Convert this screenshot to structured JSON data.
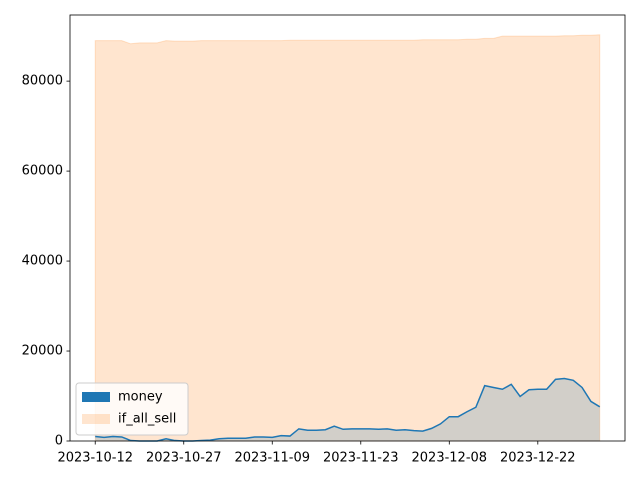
{
  "chart_data": {
    "type": "area",
    "categories": [
      "2023-10-12",
      null,
      null,
      null,
      null,
      null,
      null,
      null,
      null,
      null,
      "2023-10-27",
      null,
      null,
      null,
      null,
      null,
      null,
      null,
      null,
      null,
      "2023-11-09",
      null,
      null,
      null,
      null,
      null,
      null,
      null,
      null,
      null,
      "2023-11-23",
      null,
      null,
      null,
      null,
      null,
      null,
      null,
      null,
      null,
      "2023-12-08",
      null,
      null,
      null,
      null,
      null,
      null,
      null,
      null,
      null,
      "2023-12-22",
      null,
      null,
      null,
      null,
      null,
      null,
      null
    ],
    "series": [
      {
        "name": "money",
        "color": "#1f77b4",
        "line": true,
        "values": [
          1000,
          800,
          1000,
          900,
          100,
          0,
          0,
          0,
          500,
          100,
          0,
          0,
          100,
          200,
          500,
          600,
          600,
          600,
          900,
          900,
          800,
          1200,
          1100,
          2700,
          2400,
          2400,
          2500,
          3300,
          2600,
          2700,
          2700,
          2700,
          2600,
          2700,
          2400,
          2500,
          2300,
          2200,
          2800,
          3800,
          5400,
          5400,
          6500,
          7500,
          12300,
          11900,
          11500,
          12600,
          9900,
          11400,
          11500,
          11500,
          13700,
          13900,
          13500,
          11900,
          8800,
          7600
        ]
      },
      {
        "name": "if_all_sell",
        "color": "#ff7f0e",
        "line": false,
        "values": [
          89000,
          89000,
          89000,
          89000,
          88300,
          88500,
          88500,
          88500,
          89000,
          88900,
          88900,
          88900,
          89000,
          89000,
          89000,
          89000,
          89000,
          89000,
          89000,
          89000,
          89000,
          89000,
          89100,
          89100,
          89100,
          89100,
          89100,
          89100,
          89100,
          89100,
          89100,
          89100,
          89100,
          89100,
          89100,
          89100,
          89100,
          89200,
          89200,
          89200,
          89200,
          89200,
          89300,
          89300,
          89500,
          89500,
          90000,
          90000,
          90000,
          90000,
          90000,
          90000,
          90000,
          90100,
          90100,
          90200,
          90200,
          90300
        ]
      }
    ],
    "ylim": [
      0,
      94700
    ],
    "yticks": [
      0,
      20000,
      40000,
      60000,
      80000
    ],
    "legend": "lower left"
  }
}
